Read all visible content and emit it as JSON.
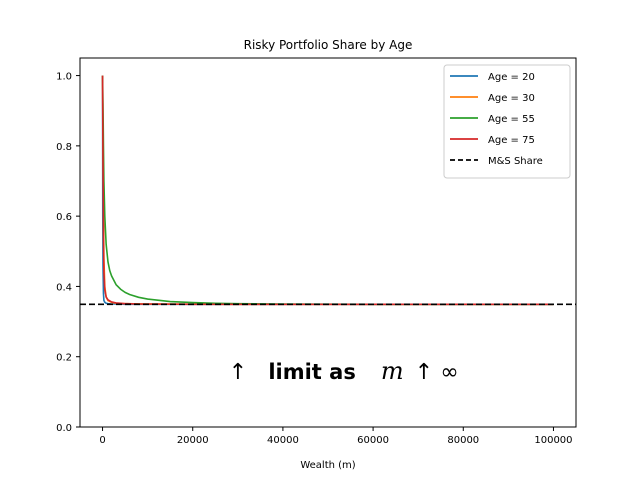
{
  "chart_data": {
    "type": "line",
    "title": "Risky Portfolio Share by Age",
    "xlabel": "Wealth (m)",
    "ylabel": "",
    "xlim": [
      -5000,
      105000
    ],
    "ylim": [
      0.0,
      1.05
    ],
    "x_ticks": [
      0,
      20000,
      40000,
      60000,
      80000,
      100000
    ],
    "x_tick_labels": [
      "0",
      "20000",
      "40000",
      "60000",
      "80000",
      "100000"
    ],
    "y_ticks": [
      0.0,
      0.2,
      0.4,
      0.6,
      0.8,
      1.0
    ],
    "y_tick_labels": [
      "0.0",
      "0.2",
      "0.4",
      "0.6",
      "0.8",
      "1.0"
    ],
    "grid": false,
    "legend_position": "top-right",
    "series": [
      {
        "name": "Age = 20",
        "color": "#1f77b4",
        "x": [
          0,
          50,
          100,
          200,
          300,
          500,
          800,
          1200,
          2000,
          3000,
          5000,
          10000,
          30000,
          100000
        ],
        "y": [
          1.0,
          0.6,
          0.46,
          0.38,
          0.36,
          0.355,
          0.352,
          0.351,
          0.35,
          0.35,
          0.349,
          0.349,
          0.349,
          0.349
        ]
      },
      {
        "name": "Age = 30",
        "color": "#ff7f0e",
        "x": [
          0,
          100,
          200,
          300,
          500,
          800,
          1200,
          2000,
          3000,
          5000,
          10000,
          30000,
          100000
        ],
        "y": [
          1.0,
          0.82,
          0.6,
          0.48,
          0.4,
          0.37,
          0.36,
          0.355,
          0.352,
          0.351,
          0.35,
          0.349,
          0.349
        ]
      },
      {
        "name": "Age = 55",
        "color": "#2ca02c",
        "x": [
          0,
          100,
          200,
          300,
          500,
          800,
          1200,
          1600,
          2000,
          3000,
          4000,
          5000,
          6000,
          8000,
          10000,
          15000,
          20000,
          25000,
          30000,
          40000,
          60000,
          100000
        ],
        "y": [
          1.0,
          0.92,
          0.8,
          0.7,
          0.6,
          0.52,
          0.47,
          0.445,
          0.43,
          0.405,
          0.392,
          0.383,
          0.377,
          0.369,
          0.364,
          0.357,
          0.354,
          0.352,
          0.351,
          0.35,
          0.349,
          0.349
        ]
      },
      {
        "name": "Age = 75",
        "color": "#d62728",
        "x": [
          0,
          100,
          200,
          300,
          500,
          800,
          1200,
          2000,
          3000,
          5000,
          8000,
          12000,
          20000,
          40000,
          100000
        ],
        "y": [
          1.0,
          0.75,
          0.55,
          0.44,
          0.39,
          0.37,
          0.362,
          0.356,
          0.353,
          0.351,
          0.35,
          0.35,
          0.349,
          0.349,
          0.349
        ]
      }
    ],
    "reference_line": {
      "name": "M&S Share",
      "y": 0.349,
      "color": "#000000",
      "style": "dashed"
    },
    "annotation": {
      "arrow_left": "↑",
      "bold_text": "limit as",
      "math_var": "m",
      "arrow_right": "↑",
      "infinity": "∞",
      "x": 28000,
      "y": 0.16
    }
  }
}
